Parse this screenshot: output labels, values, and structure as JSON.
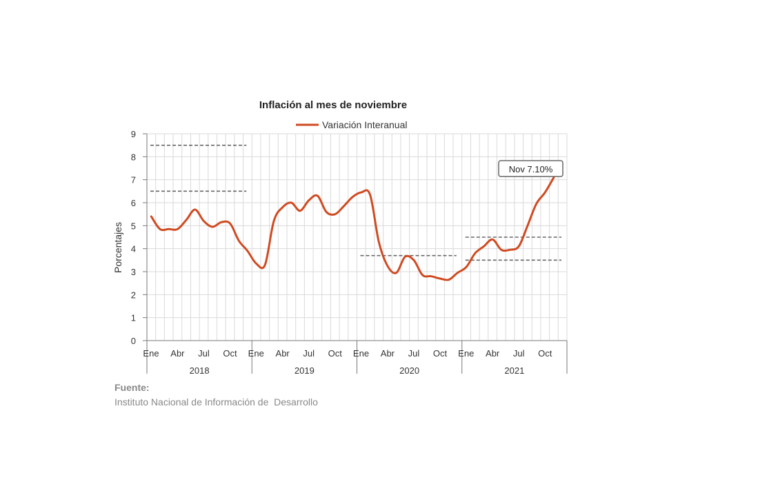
{
  "chart_data": {
    "type": "line",
    "title": "Inflación al mes de noviembre",
    "ylabel": "Porcentajes",
    "ylim": [
      0,
      9
    ],
    "yticks": [
      "0",
      "1",
      "2",
      "3",
      "4",
      "5",
      "6",
      "7",
      "8",
      "9"
    ],
    "grid": true,
    "legend_position": "top-center",
    "x_month_labels": [
      "Ene",
      "Abr",
      "Jul",
      "Oct"
    ],
    "years": [
      "2018",
      "2019",
      "2020",
      "2021"
    ],
    "series": [
      {
        "name": "Variación Interanual",
        "color": "#d04a21",
        "start": "2018-01",
        "values": [
          5.4,
          4.85,
          4.85,
          4.85,
          5.25,
          5.7,
          5.2,
          4.95,
          5.15,
          5.1,
          4.35,
          3.9,
          3.35,
          3.3,
          5.2,
          5.8,
          6.0,
          5.65,
          6.1,
          6.3,
          5.6,
          5.5,
          5.85,
          6.25,
          6.45,
          6.35,
          4.3,
          3.25,
          2.95,
          3.65,
          3.5,
          2.85,
          2.8,
          2.7,
          2.65,
          2.95,
          3.2,
          3.8,
          4.1,
          4.4,
          3.95,
          3.95,
          4.1,
          5.0,
          5.95,
          6.45,
          7.1
        ]
      }
    ],
    "reference_lines": [
      {
        "from": "2018-01",
        "to": "2018-12",
        "value": 8.5
      },
      {
        "from": "2018-01",
        "to": "2018-12",
        "value": 6.5
      },
      {
        "from": "2020-01",
        "to": "2020-12",
        "value": 3.7
      },
      {
        "from": "2021-01",
        "to": "2021-12",
        "value": 4.5
      },
      {
        "from": "2021-01",
        "to": "2021-12",
        "value": 3.5
      }
    ],
    "annotation": {
      "text": "Nov 7.10%",
      "at": "2021-11",
      "value": 7.1
    }
  },
  "source": {
    "label": "Fuente:",
    "text": "Instituto Nacional de Información de  Desarrollo"
  }
}
